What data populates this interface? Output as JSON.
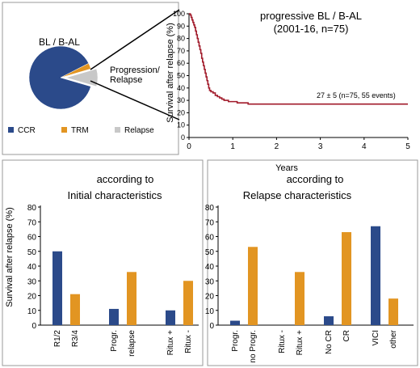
{
  "colors": {
    "ccr": "#2b4a8a",
    "trm": "#e29522",
    "relapse": "#c8c8c8",
    "km": "#a11a2a",
    "axis": "#000000",
    "panel": "#999999"
  },
  "chart_data": [
    {
      "id": "pie",
      "type": "pie",
      "title": "BL / B-AL",
      "slices": [
        {
          "name": "CCR",
          "value": 88
        },
        {
          "name": "TRM",
          "value": 3
        },
        {
          "name": "Relapse",
          "value": 9
        }
      ],
      "callout": [
        "Progression/",
        "Relapse"
      ],
      "legend": [
        "CCR",
        "TRM",
        "Relapse"
      ],
      "legend_position": "bottom"
    },
    {
      "id": "km",
      "type": "line",
      "title": [
        "progressive BL / B-AL",
        "(2001-16, n=75)"
      ],
      "xlabel": "Years",
      "ylabel": "Survival after relapse (%)",
      "xlim": [
        0,
        5
      ],
      "ylim": [
        0,
        100
      ],
      "xticks": [
        0,
        1,
        2,
        3,
        4,
        5
      ],
      "yticks": [
        0,
        10,
        20,
        30,
        40,
        50,
        60,
        70,
        80,
        90,
        100
      ],
      "annotation": "27 ± 5 (n=75, 55 events)",
      "series": [
        {
          "x": [
            0,
            0.03,
            0.05,
            0.07,
            0.09,
            0.11,
            0.13,
            0.15,
            0.17,
            0.19,
            0.21,
            0.23,
            0.25,
            0.27,
            0.29,
            0.31,
            0.33,
            0.35,
            0.37,
            0.39,
            0.41,
            0.43,
            0.45,
            0.47,
            0.5,
            0.55,
            0.6,
            0.65,
            0.7,
            0.75,
            0.8,
            0.9,
            1.0,
            1.1,
            1.2,
            1.35,
            1.5,
            5.0
          ],
          "y": [
            100,
            99,
            97,
            95,
            93,
            91,
            89,
            86,
            83,
            80,
            77,
            74,
            71,
            68,
            64,
            61,
            58,
            55,
            52,
            49,
            46,
            43,
            40,
            38,
            37,
            36,
            34,
            33,
            32,
            31,
            30,
            29,
            29,
            28,
            28,
            27,
            27,
            27
          ]
        }
      ]
    },
    {
      "id": "initial",
      "type": "bar",
      "title": [
        "according to",
        "Initial characteristics"
      ],
      "ylabel": "Survival after relapse (%)",
      "ylim": [
        0,
        80
      ],
      "yticks": [
        0,
        10,
        20,
        30,
        40,
        50,
        60,
        70,
        80
      ],
      "groups": [
        {
          "labels": [
            "R1/2",
            "R3/4"
          ],
          "values": [
            50,
            21
          ]
        },
        {
          "labels": [
            "Progr.",
            "relapse"
          ],
          "values": [
            11,
            36
          ]
        },
        {
          "labels": [
            "Ritux +",
            "Ritux -"
          ],
          "values": [
            10,
            30
          ]
        }
      ]
    },
    {
      "id": "relapse",
      "type": "bar",
      "title": [
        "according to",
        "Relapse characteristics"
      ],
      "ylim": [
        0,
        80
      ],
      "yticks": [
        0,
        10,
        20,
        30,
        40,
        50,
        60,
        70,
        80
      ],
      "groups": [
        {
          "labels": [
            "Progr.",
            "no Progr."
          ],
          "values": [
            3,
            53
          ]
        },
        {
          "labels": [
            "Ritux -",
            "Ritux +"
          ],
          "values": [
            0,
            36
          ]
        },
        {
          "labels": [
            "No CR",
            "CR"
          ],
          "values": [
            6,
            63
          ]
        },
        {
          "labels": [
            "VICI",
            "other"
          ],
          "values": [
            67,
            18
          ]
        }
      ]
    }
  ]
}
